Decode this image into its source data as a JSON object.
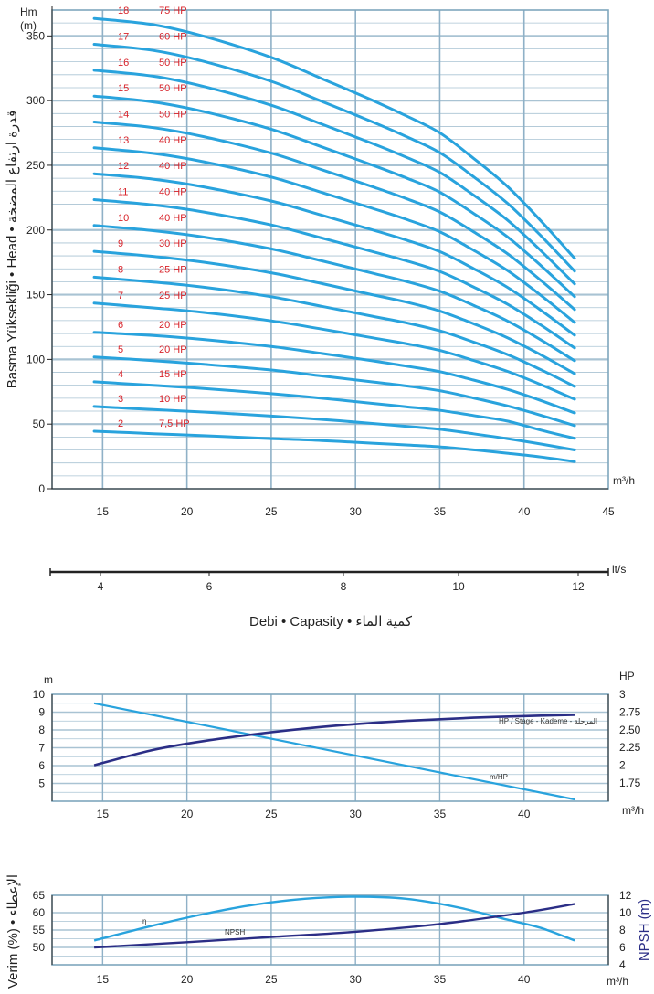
{
  "chart_data": [
    {
      "type": "line",
      "title": "",
      "ylabel": "Basma Yüksekliği • Head • قدرة ارتفاع المضخة",
      "yunit": "Hm\n(m)",
      "xunit": "m³/h",
      "xlim": [
        12,
        45
      ],
      "ylim": [
        0,
        370
      ],
      "xticks": [
        15,
        20,
        25,
        30,
        35,
        40,
        45
      ],
      "yticks": [
        0,
        50,
        100,
        150,
        200,
        250,
        300,
        350
      ],
      "grid": true,
      "color": "#29a3dd",
      "x": [
        14.5,
        18,
        21,
        25,
        28,
        31,
        33,
        35,
        37,
        39,
        41,
        43
      ],
      "series": [
        {
          "stage": "2",
          "power": "7,5 HP",
          "values": [
            44.5,
            42.6,
            41,
            38.8,
            37.3,
            35.2,
            33.9,
            32.4,
            30.1,
            27.5,
            24.6,
            21
          ]
        },
        {
          "stage": "3",
          "power": "10 HP",
          "values": [
            63.6,
            61.2,
            59.3,
            56.2,
            53.6,
            50.5,
            48.3,
            46,
            42.5,
            38.8,
            34.6,
            30
          ]
        },
        {
          "stage": "4",
          "power": "15 HP",
          "values": [
            82.7,
            79.9,
            77.5,
            73.5,
            70,
            66,
            63.4,
            60.6,
            56.6,
            52.3,
            45.3,
            39
          ]
        },
        {
          "stage": "5",
          "power": "20 HP",
          "values": [
            101.8,
            99.1,
            96.2,
            91.8,
            87.2,
            82.6,
            79.5,
            75.8,
            70.2,
            64.1,
            56.8,
            48.8
          ]
        },
        {
          "stage": "6",
          "power": "20 HP",
          "values": [
            120.9,
            118.5,
            115.4,
            110,
            104.6,
            98.9,
            94.8,
            90.5,
            84,
            76.9,
            68.2,
            58.6
          ]
        },
        {
          "stage": "7",
          "power": "25 HP",
          "values": [
            143.5,
            139.8,
            136.3,
            129.8,
            123.4,
            116.7,
            112.2,
            106.9,
            99.2,
            90.8,
            80.5,
            69.2
          ]
        },
        {
          "stage": "8",
          "power": "25 HP",
          "values": [
            163.5,
            159.8,
            155.8,
            148.4,
            141,
            133.4,
            128.3,
            122.1,
            113.4,
            103.8,
            92,
            79.1
          ]
        },
        {
          "stage": "9",
          "power": "30 HP",
          "values": [
            183.5,
            179.6,
            175.1,
            166.9,
            158.6,
            150,
            144.3,
            137.4,
            127.6,
            116.8,
            103.5,
            89
          ]
        },
        {
          "stage": "10",
          "power": "40 HP",
          "values": [
            203.5,
            199.5,
            194.5,
            185.4,
            176.2,
            166.7,
            160.3,
            152.7,
            141.8,
            129.8,
            115,
            98.9
          ]
        },
        {
          "stage": "11",
          "power": "40 HP",
          "values": [
            223.5,
            219.4,
            213.9,
            203.9,
            193.8,
            183.4,
            176.3,
            168,
            156,
            142.8,
            126.5,
            108.8
          ]
        },
        {
          "stage": "12",
          "power": "40 HP",
          "values": [
            243.5,
            239.3,
            233.3,
            222.4,
            211.4,
            200.1,
            192.3,
            183.3,
            170.2,
            155.8,
            138,
            118.7
          ]
        },
        {
          "stage": "13",
          "power": "40 HP",
          "values": [
            263.5,
            259.2,
            252.7,
            240.9,
            229,
            216.8,
            208.3,
            198.6,
            184.4,
            168.8,
            149.5,
            128.6
          ]
        },
        {
          "stage": "14",
          "power": "50 HP",
          "values": [
            283.5,
            279.1,
            272.1,
            259.4,
            246.6,
            233.5,
            224.3,
            213.9,
            198.6,
            181.8,
            161,
            138.5
          ]
        },
        {
          "stage": "15",
          "power": "50 HP",
          "values": [
            303.5,
            299,
            291.5,
            277.9,
            264.2,
            250.2,
            240.3,
            229.2,
            212.8,
            194.8,
            172.5,
            148.4
          ]
        },
        {
          "stage": "16",
          "power": "50 HP",
          "values": [
            323.5,
            318.9,
            310.9,
            296.4,
            281.8,
            266.9,
            256.3,
            244.5,
            227,
            207.8,
            184,
            158.3
          ]
        },
        {
          "stage": "17",
          "power": "60 HP",
          "values": [
            343.5,
            338.8,
            330.3,
            314.9,
            299.4,
            283.6,
            272.3,
            259.8,
            241.2,
            220.8,
            195.5,
            168.2
          ]
        },
        {
          "stage": "18",
          "power": "75 HP",
          "values": [
            363.5,
            358.7,
            349.7,
            333.4,
            317,
            300.3,
            288.3,
            275.1,
            255.4,
            233.8,
            207,
            178.1
          ]
        }
      ]
    },
    {
      "type": "axis",
      "unit": "lt/s",
      "ticks": [
        4,
        6,
        8,
        10,
        12
      ],
      "xlabel": "Debi • Capasity • كمية الماء"
    },
    {
      "type": "line",
      "yunit_left": "m",
      "yunit_right": "HP",
      "xunit": "m³/h",
      "xticks": [
        15,
        20,
        25,
        30,
        35,
        40
      ],
      "yticks_left": [
        5,
        6,
        7,
        8,
        9,
        10
      ],
      "yticks_right": [
        "1.75",
        "2",
        "2.25",
        "2.50",
        "2.75",
        "3"
      ],
      "ylim_left": [
        4,
        10
      ],
      "grid": true,
      "series": [
        {
          "name": "m/HP",
          "axis": "left",
          "color": "#29a3dd",
          "x": [
            14.5,
            43
          ],
          "values": [
            9.5,
            4.1
          ]
        },
        {
          "name": "HP / Stage - Kademe - المرحلة",
          "axis": "right",
          "color": "#2b2e86",
          "x": [
            14.5,
            18,
            21,
            25,
            29,
            33,
            37,
            41,
            43
          ],
          "values": [
            2.0,
            2.215,
            2.34,
            2.465,
            2.56,
            2.625,
            2.67,
            2.7,
            2.71
          ]
        }
      ]
    },
    {
      "type": "line",
      "ylabel_left": "Verim (%) • الإعطاء",
      "ylabel_right": "NPSH (m)",
      "xunit": "m³/h",
      "xticks": [
        15,
        20,
        25,
        30,
        35,
        40
      ],
      "yticks_left": [
        50,
        55,
        60,
        65
      ],
      "yticks_right": [
        4,
        6,
        8,
        10,
        12
      ],
      "ylim_left": [
        45,
        65
      ],
      "ylim_right": [
        4,
        12
      ],
      "grid": true,
      "series": [
        {
          "name": "η",
          "axis": "left",
          "color": "#29a3dd",
          "x": [
            14.5,
            18,
            21,
            24,
            27,
            30,
            33,
            36,
            39,
            41,
            43
          ],
          "values": [
            52,
            56.3,
            59.6,
            62.3,
            64,
            64.6,
            64,
            61.6,
            58,
            55.6,
            52
          ]
        },
        {
          "name": "NPSH",
          "axis": "right",
          "color": "#2b2e86",
          "x": [
            14.5,
            20,
            25,
            30,
            35,
            40,
            43
          ],
          "values": [
            6,
            6.6,
            7.2,
            7.8,
            8.7,
            10,
            11
          ]
        }
      ]
    }
  ]
}
